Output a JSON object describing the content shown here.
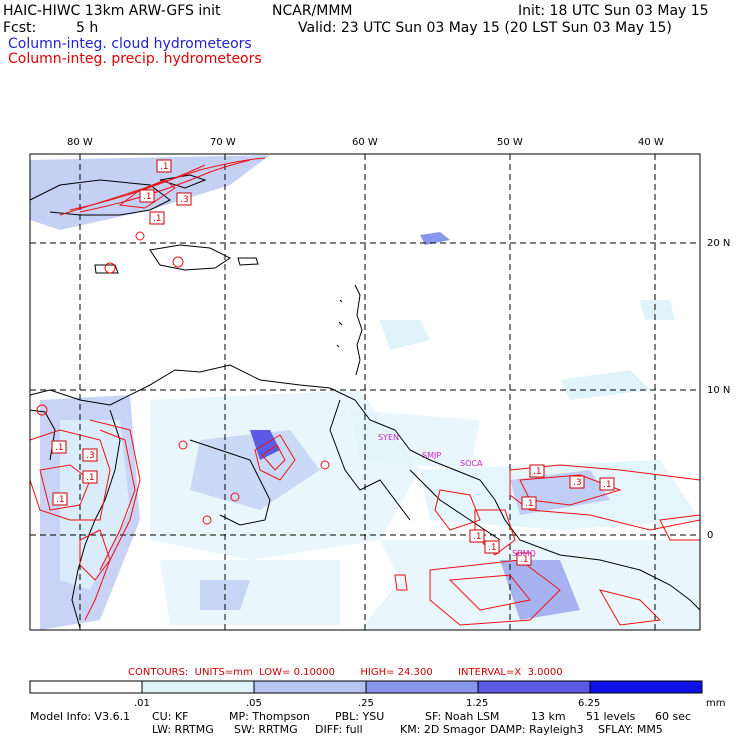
{
  "header": {
    "title_left": "HAIC-HIWC 13km ARW-GFS init",
    "title_org": "NCAR/MMM",
    "init": "Init: 18 UTC Sun 03 May 15",
    "fcst_label": "Fcst:",
    "fcst_value": "5 h",
    "valid": "Valid: 23 UTC Sun 03 May 15 (20 LST Sun 03 May 15)",
    "field1": "Column-integ. cloud hydrometeors",
    "field2": "Column-integ. precip. hydrometeors"
  },
  "colors": {
    "field1": "#2222cc",
    "field2": "#dd0000",
    "coast": "#000000",
    "contour": "#ee1111",
    "station": "#cc22cc"
  },
  "map": {
    "lon_labels": [
      "80 W",
      "70 W",
      "60 W",
      "50 W",
      "40 W"
    ],
    "lat_labels": [
      "20 N",
      "10 N",
      "0"
    ],
    "stations": [
      "SYEN",
      "SMJP",
      "SOCA",
      "SBMQ"
    ],
    "contour_labels": [
      ".1",
      ".3",
      ".1",
      ".1",
      ".1",
      ".3",
      ".1",
      ".1",
      ".1",
      ".3",
      ".1",
      ".1",
      ".1",
      ".1",
      ".1"
    ]
  },
  "contours_info": {
    "text": "CONTOURS:  UNITS=mm  LOW= 0.10000        HIGH= 24.300        INTERVAL=X  3.0000"
  },
  "colorbar": {
    "ticks": [
      ".01",
      ".05",
      ".25",
      "1.25",
      "6.25"
    ],
    "units": "mm",
    "colors": [
      "#ffffff",
      "#dff3fb",
      "#b6c4f2",
      "#8a95ec",
      "#5a5ae4",
      "#2c2ce0",
      "#1010e8"
    ]
  },
  "model_info": {
    "line1": [
      {
        "label": "Model Info: V3.6.1"
      },
      {
        "label": "CU: KF"
      },
      {
        "label": "MP: Thompson"
      },
      {
        "label": "PBL: YSU"
      },
      {
        "label": "SF: Noah LSM"
      },
      {
        "label": "13 km"
      },
      {
        "label": "51 levels"
      },
      {
        "label": "60 sec"
      }
    ],
    "line2": [
      {
        "label": "LW: RRTMG"
      },
      {
        "label": "SW: RRTMG"
      },
      {
        "label": "DIFF: full"
      },
      {
        "label": "KM: 2D Smagor"
      },
      {
        "label": "DAMP: Rayleigh3"
      },
      {
        "label": "SFLAY: MM5"
      }
    ]
  }
}
